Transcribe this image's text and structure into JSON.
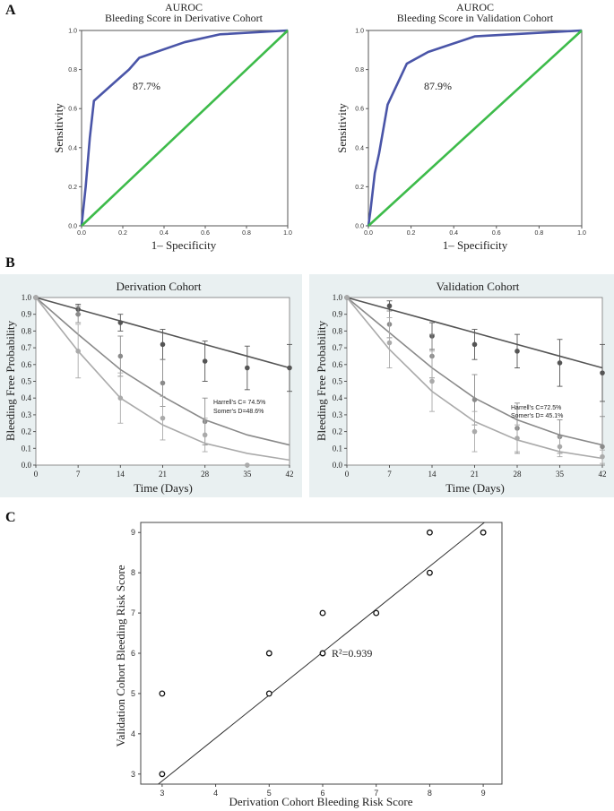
{
  "panel_labels": {
    "a": "A",
    "b": "B",
    "c": "C"
  },
  "chart_data": [
    {
      "type": "line",
      "panel": "A",
      "title": "AUROC",
      "subtitle": "Bleeding Score in Derivative Cohort",
      "xlabel": "1– Specificity",
      "ylabel": "Sensitivity",
      "xlim": [
        0,
        1
      ],
      "ylim": [
        0,
        1
      ],
      "xticks": [
        "0.0",
        "0.2",
        "0.4",
        "0.6",
        "0.8",
        "1.0"
      ],
      "yticks": [
        "0.0",
        "0.2",
        "0.4",
        "0.6",
        "0.8",
        "1.0"
      ],
      "annotation": "87.7%",
      "series": [
        {
          "name": "ROC",
          "color": "#4a55a8",
          "x": [
            0,
            0.02,
            0.04,
            0.06,
            0.23,
            0.28,
            0.5,
            0.67,
            1.0
          ],
          "y": [
            0,
            0.2,
            0.45,
            0.64,
            0.8,
            0.86,
            0.94,
            0.98,
            1.0
          ]
        },
        {
          "name": "Reference",
          "color": "#3dbb4a",
          "x": [
            0,
            1
          ],
          "y": [
            0,
            1
          ]
        }
      ]
    },
    {
      "type": "line",
      "panel": "A",
      "title": "AUROC",
      "subtitle": "Bleeding Score in Validation Cohort",
      "xlabel": "1– Specificity",
      "ylabel": "Sensitivity",
      "xlim": [
        0,
        1
      ],
      "ylim": [
        0,
        1
      ],
      "xticks": [
        "0.0",
        "0.2",
        "0.4",
        "0.6",
        "0.8",
        "1.0"
      ],
      "yticks": [
        "0.0",
        "0.2",
        "0.4",
        "0.6",
        "0.8",
        "1.0"
      ],
      "annotation": "87.9%",
      "series": [
        {
          "name": "ROC",
          "color": "#4a55a8",
          "x": [
            0,
            0.01,
            0.03,
            0.05,
            0.09,
            0.18,
            0.28,
            0.5,
            1.0
          ],
          "y": [
            0,
            0.08,
            0.27,
            0.37,
            0.62,
            0.83,
            0.89,
            0.97,
            1.0
          ]
        },
        {
          "name": "Reference",
          "color": "#3dbb4a",
          "x": [
            0,
            1
          ],
          "y": [
            0,
            1
          ]
        }
      ]
    },
    {
      "type": "line",
      "panel": "B",
      "title": "Derivation Cohort",
      "xlabel": "Time (Days)",
      "ylabel": "Bleeding Free Probability",
      "xlim": [
        0,
        42
      ],
      "ylim": [
        0,
        1
      ],
      "xticks": [
        "0",
        "7",
        "14",
        "21",
        "28",
        "35",
        "42"
      ],
      "yticks": [
        "0.0",
        "0.1",
        "0.2",
        "0.3",
        "0.4",
        "0.5",
        "0.6",
        "0.7",
        "0.8",
        "0.9",
        "1.0"
      ],
      "annotation_lines": [
        "Harrell's C= 74.5%",
        "Somer's D=48.6%"
      ],
      "x": [
        0,
        7,
        14,
        21,
        28,
        35,
        42
      ],
      "series": [
        {
          "name": "low",
          "color": "#555555",
          "curve": [
            1.0,
            0.93,
            0.86,
            0.79,
            0.72,
            0.65,
            0.58
          ],
          "points": [
            1.0,
            0.93,
            0.85,
            0.72,
            0.62,
            0.58,
            0.58
          ],
          "err": [
            0,
            0.03,
            0.05,
            0.09,
            0.12,
            0.13,
            0.14
          ]
        },
        {
          "name": "mid",
          "color": "#8a8a8a",
          "curve": [
            1.0,
            0.78,
            0.57,
            0.41,
            0.27,
            0.18,
            0.12
          ],
          "points": [
            1.0,
            0.9,
            0.65,
            0.49,
            0.26,
            null,
            null
          ],
          "err": [
            0,
            0.05,
            0.12,
            0.14,
            0.14,
            0,
            0
          ]
        },
        {
          "name": "high",
          "color": "#aaaaaa",
          "curve": [
            1.0,
            0.68,
            0.4,
            0.24,
            0.13,
            0.07,
            0.03
          ],
          "points": [
            1.0,
            0.68,
            0.4,
            0.28,
            0.18,
            0.0,
            null
          ],
          "err": [
            0,
            0.16,
            0.15,
            0.13,
            0.1,
            0,
            0
          ]
        }
      ]
    },
    {
      "type": "line",
      "panel": "B",
      "title": "Validation Cohort",
      "xlabel": "Time (Days)",
      "ylabel": "Bleeding Free Probability",
      "xlim": [
        0,
        42
      ],
      "ylim": [
        0,
        1
      ],
      "xticks": [
        "0",
        "7",
        "14",
        "21",
        "28",
        "35",
        "42"
      ],
      "yticks": [
        "0.0",
        "0.1",
        "0.2",
        "0.3",
        "0.4",
        "0.5",
        "0.6",
        "0.7",
        "0.8",
        "0.9",
        "1.0"
      ],
      "annotation_lines": [
        "Harrell's C=72.5%",
        "Somer's D= 45.1%"
      ],
      "x": [
        0,
        7,
        14,
        21,
        28,
        35,
        42
      ],
      "series": [
        {
          "name": "low",
          "color": "#555555",
          "curve": [
            1.0,
            0.93,
            0.86,
            0.79,
            0.72,
            0.65,
            0.58
          ],
          "points": [
            1.0,
            0.95,
            0.77,
            0.72,
            0.68,
            0.61,
            0.55
          ],
          "err": [
            0,
            0.03,
            0.08,
            0.09,
            0.1,
            0.14,
            0.17
          ]
        },
        {
          "name": "mid",
          "color": "#8a8a8a",
          "curve": [
            1.0,
            0.79,
            0.58,
            0.4,
            0.27,
            0.18,
            0.12
          ],
          "points": [
            1.0,
            0.84,
            0.65,
            0.39,
            0.22,
            0.17,
            0.11
          ],
          "err": [
            0,
            0.08,
            0.13,
            0.15,
            0.15,
            0.1,
            0.18
          ]
        },
        {
          "name": "high",
          "color": "#aaaaaa",
          "curve": [
            1.0,
            0.69,
            0.44,
            0.26,
            0.15,
            0.08,
            0.04
          ],
          "points": [
            1.0,
            0.73,
            0.5,
            0.2,
            0.16,
            0.11,
            0.05
          ],
          "err": [
            0,
            0.15,
            0.18,
            0.12,
            0.08,
            0.06,
            0.04
          ]
        }
      ]
    },
    {
      "type": "scatter",
      "panel": "C",
      "xlabel": "Derivation Cohort Bleeding Risk Score",
      "ylabel": "Validation  Cohort Bleeding Risk Score",
      "xlim": [
        2.6,
        9.35
      ],
      "ylim": [
        2.75,
        9.25
      ],
      "xticks": [
        "3",
        "4",
        "5",
        "6",
        "7",
        "8",
        "9"
      ],
      "yticks": [
        "3",
        "4",
        "5",
        "6",
        "7",
        "8",
        "9"
      ],
      "annotation": "R²=0.939",
      "x": [
        3,
        3,
        5,
        5,
        6,
        6,
        7,
        8,
        8,
        9
      ],
      "y": [
        3,
        5,
        5,
        6,
        6,
        7,
        7,
        8,
        9,
        9
      ],
      "fit": {
        "x": [
          2.6,
          9.35
        ],
        "y": [
          2.4,
          9.6
        ]
      }
    }
  ]
}
